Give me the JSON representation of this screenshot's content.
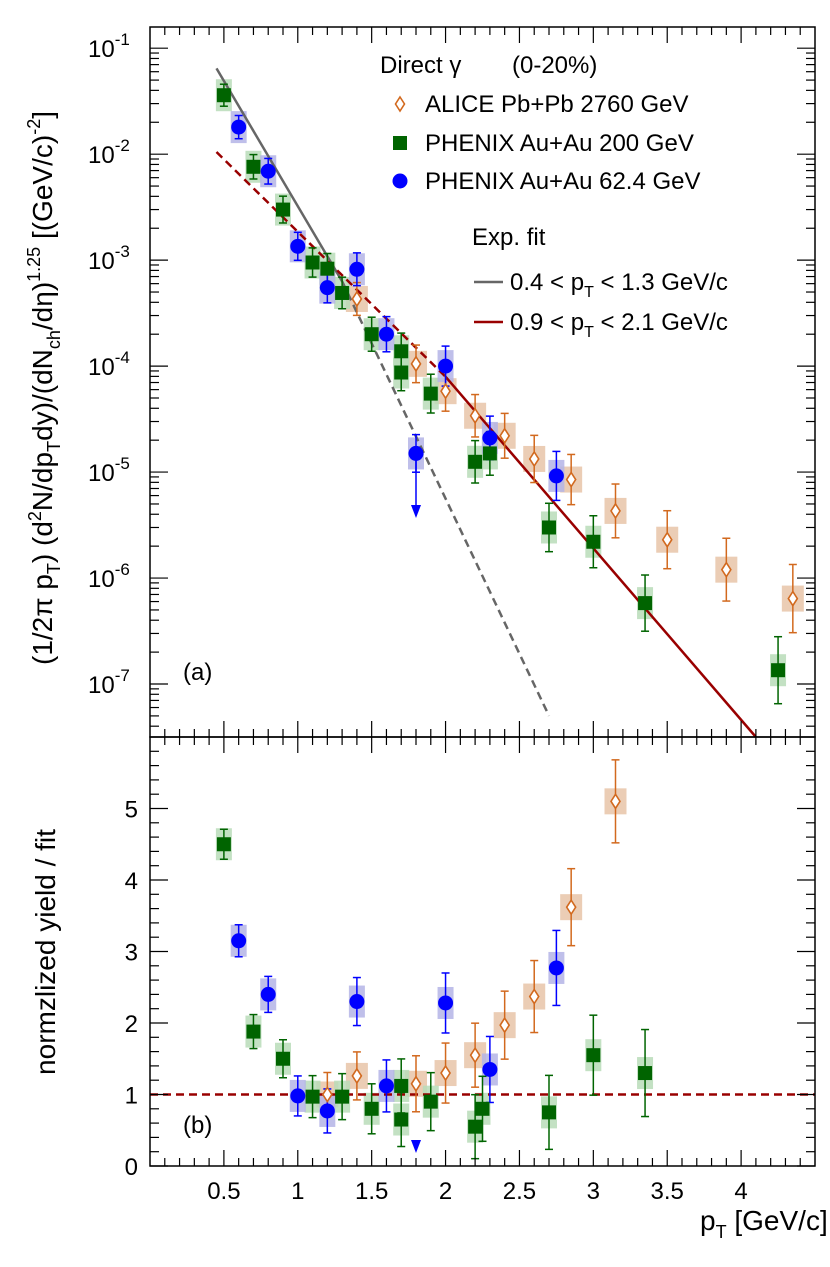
{
  "chart_data": [
    {
      "type": "scatter",
      "panel": "(a)",
      "yscale": "log",
      "ylabel": "(1/2π p_T) (d²N/dp_T dy)/(dN_ch/dη)^1.25 [(GeV/c)^-2]",
      "xlim": [
        0,
        4.5
      ],
      "ylim_log10": [
        -7.5,
        -0.8
      ],
      "ytick_labels": [
        "10^-7",
        "10^-6",
        "10^-5",
        "10^-4",
        "10^-3",
        "10^-2",
        "10^-1"
      ],
      "legend": {
        "title_left": "Direct γ",
        "title_right": "(0-20%)",
        "entries": [
          "ALICE Pb+Pb 2760 GeV",
          "PHENIX Au+Au 200 GeV",
          "PHENIX Au+Au 62.4 GeV"
        ],
        "fit_title": "Exp. fit",
        "fit_entries": [
          "0.4 < p_T < 1.3 GeV/c",
          "0.9 < p_T < 2.1 GeV/c"
        ]
      },
      "series": [
        {
          "name": "ALICE Pb+Pb 2760 GeV",
          "color": "#d2691e",
          "marker": "open-diamond",
          "x": [
            1.4,
            1.8,
            2.0,
            2.2,
            2.4,
            2.6,
            2.85,
            3.15,
            3.5,
            3.9,
            4.35
          ],
          "y": [
            0.00043,
            0.000105,
            5.8e-05,
            3.4e-05,
            2.2e-05,
            1.33e-05,
            8.5e-06,
            4.3e-06,
            2.3e-06,
            1.2e-06,
            6.4e-07
          ]
        },
        {
          "name": "PHENIX Au+Au 200 GeV",
          "color": "#006400",
          "marker": "square",
          "x": [
            0.5,
            0.7,
            0.9,
            1.1,
            1.2,
            1.3,
            1.5,
            1.7,
            1.9,
            2.2,
            2.3,
            2.7,
            3.0,
            3.35,
            4.25,
            1.7
          ],
          "y": [
            0.036,
            0.0076,
            0.003,
            0.00095,
            0.00083,
            0.00049,
            0.0002,
            0.000138,
            5.5e-05,
            1.25e-05,
            1.5e-05,
            3e-06,
            2.2e-06,
            5.8e-07,
            1.35e-07,
            8.7e-05
          ]
        },
        {
          "name": "PHENIX Au+Au 62.4 GeV",
          "color": "#0000ff",
          "marker": "circle",
          "x": [
            0.6,
            0.8,
            1.0,
            1.2,
            1.4,
            1.6,
            1.8,
            2.0,
            2.3,
            2.75
          ],
          "y": [
            0.018,
            0.0069,
            0.00135,
            0.00055,
            0.00082,
            0.0002,
            1.5e-05,
            0.0001,
            2.1e-05,
            9.2e-06
          ]
        }
      ],
      "fits": [
        {
          "name": "0.4 < p_T < 1.3 GeV/c",
          "color": "#666666",
          "log10_points": [
            [
              0.45,
              -1.19
            ],
            [
              1.3,
              -3.2
            ],
            [
              2.7,
              -7.3
            ]
          ]
        },
        {
          "name": "0.9 < p_T < 2.1 GeV/c",
          "color": "#990000",
          "log10_points": [
            [
              0.45,
              -1.98
            ],
            [
              2.0,
              -4.1
            ],
            [
              4.1,
              -7.5
            ]
          ]
        }
      ]
    },
    {
      "type": "scatter",
      "panel": "(b)",
      "xlabel": "p_T [GeV/c]",
      "ylabel": "normzlized yield / fit",
      "xlim": [
        0,
        4.5
      ],
      "ylim": [
        0,
        6
      ],
      "xtick_labels": [
        "0.5",
        "1",
        "1.5",
        "2",
        "2.5",
        "3",
        "3.5",
        "4"
      ],
      "ytick_labels": [
        "0",
        "1",
        "2",
        "3",
        "4",
        "5"
      ],
      "reference_line": 1,
      "series": [
        {
          "name": "ALICE Pb+Pb 2760 GeV",
          "color": "#d2691e",
          "marker": "open-diamond",
          "x": [
            1.2,
            1.4,
            1.8,
            2.0,
            2.2,
            2.4,
            2.6,
            2.85,
            3.15
          ],
          "y": [
            1.0,
            1.26,
            1.15,
            1.3,
            1.55,
            1.97,
            2.37,
            3.62,
            5.1
          ]
        },
        {
          "name": "PHENIX Au+Au 200 GeV",
          "color": "#006400",
          "marker": "square",
          "x": [
            0.5,
            0.7,
            0.9,
            1.1,
            1.3,
            1.5,
            1.7,
            1.7,
            1.9,
            2.2,
            2.25,
            2.7,
            3.0,
            3.35
          ],
          "y": [
            4.5,
            1.88,
            1.5,
            0.97,
            0.97,
            0.8,
            0.65,
            1.12,
            0.9,
            0.55,
            0.8,
            0.75,
            1.55,
            1.3
          ]
        },
        {
          "name": "PHENIX Au+Au 62.4 GeV",
          "color": "#0000ff",
          "marker": "circle",
          "x": [
            0.6,
            0.8,
            1.0,
            1.2,
            1.4,
            1.6,
            2.0,
            2.3,
            2.75
          ],
          "y": [
            3.15,
            2.4,
            0.98,
            0.77,
            2.3,
            1.12,
            2.28,
            1.35,
            2.77
          ]
        }
      ]
    }
  ]
}
